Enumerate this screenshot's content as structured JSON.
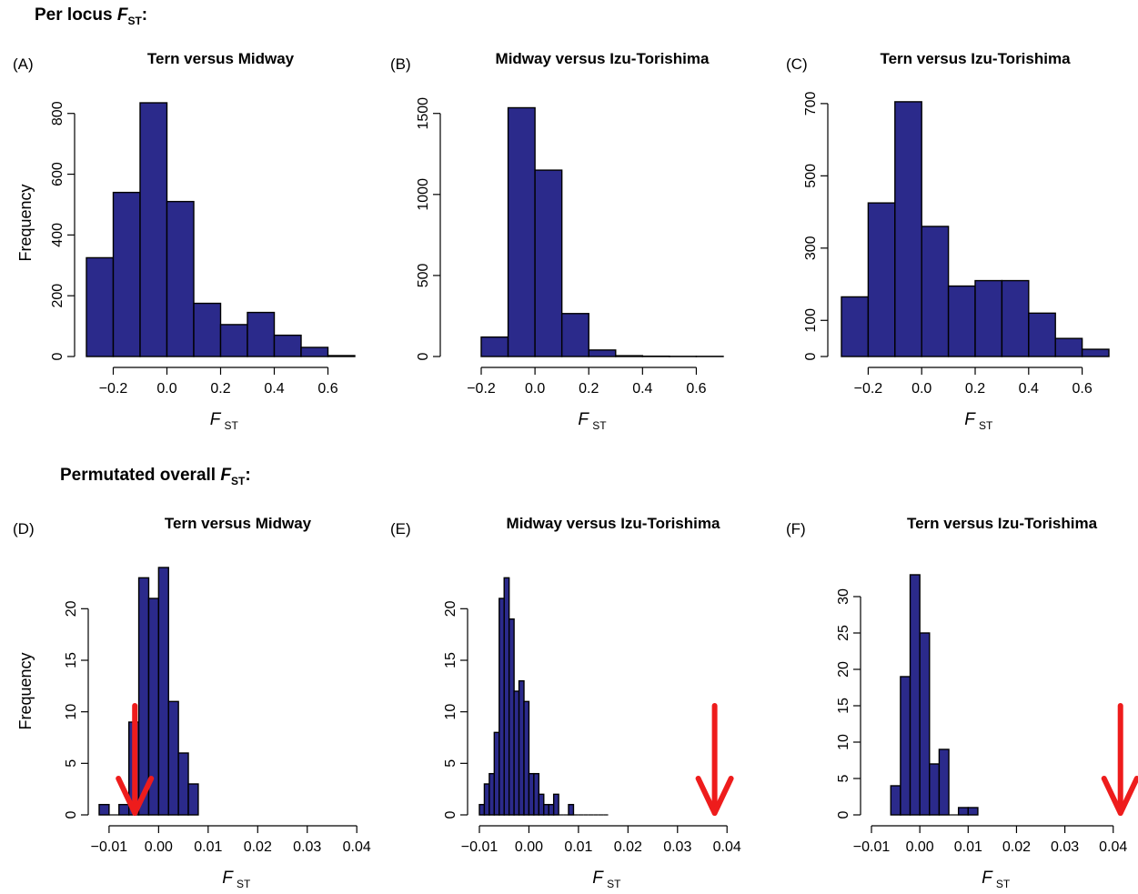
{
  "figure": {
    "section_top": {
      "label": "Per locus",
      "symbol": "F",
      "sub": "ST",
      "suffix": ":"
    },
    "section_bottom": {
      "label": "Permutated overall",
      "symbol": "F",
      "sub": "ST",
      "suffix": ":"
    },
    "bar_color": "#2b2a8b",
    "arrow_color": "#ee1c1c"
  },
  "chart_data": [
    {
      "type": "bar",
      "panel": "(A)",
      "title": "Tern versus Midway",
      "xlabel": "F",
      "xlabel_sub": "ST",
      "ylabel": "Frequency",
      "xlim": [
        -0.3,
        0.7
      ],
      "ylim": [
        0,
        880
      ],
      "bin_edges": [
        -0.3,
        -0.2,
        -0.1,
        0.0,
        0.1,
        0.2,
        0.3,
        0.4,
        0.5,
        0.6,
        0.7
      ],
      "values": [
        325,
        540,
        835,
        510,
        175,
        105,
        145,
        70,
        30,
        3
      ],
      "x_ticks": [
        -0.2,
        0.0,
        0.2,
        0.4,
        0.6
      ],
      "x_tick_labels": [
        "−0.2",
        "0.0",
        "0.2",
        "0.4",
        "0.6"
      ],
      "y_ticks": [
        0,
        200,
        400,
        600,
        800
      ],
      "y_tick_labels": [
        "0",
        "200",
        "400",
        "600",
        "800"
      ],
      "arrow_x": null
    },
    {
      "type": "bar",
      "panel": "(B)",
      "title": "Midway versus Izu-Torishima",
      "xlabel": "F",
      "xlabel_sub": "ST",
      "ylabel": "",
      "xlim": [
        -0.2,
        0.7
      ],
      "ylim": [
        0,
        1650
      ],
      "bin_edges": [
        -0.2,
        -0.1,
        0.0,
        0.1,
        0.2,
        0.3,
        0.4,
        0.5,
        0.6,
        0.7
      ],
      "values": [
        120,
        1535,
        1150,
        265,
        40,
        5,
        2,
        1,
        1
      ],
      "x_ticks": [
        -0.2,
        0.0,
        0.2,
        0.4,
        0.6
      ],
      "x_tick_labels": [
        "−0.2",
        "0.0",
        "0.2",
        "0.4",
        "0.6"
      ],
      "y_ticks": [
        0,
        500,
        1000,
        1500
      ],
      "y_tick_labels": [
        "0",
        "500",
        "1000",
        "1500"
      ],
      "arrow_x": null
    },
    {
      "type": "bar",
      "panel": "(C)",
      "title": "Tern versus Izu-Torishima",
      "xlabel": "F",
      "xlabel_sub": "ST",
      "ylabel": "",
      "xlim": [
        -0.3,
        0.7
      ],
      "ylim": [
        0,
        740
      ],
      "bin_edges": [
        -0.3,
        -0.2,
        -0.1,
        0.0,
        0.1,
        0.2,
        0.3,
        0.4,
        0.5,
        0.6,
        0.7
      ],
      "values": [
        165,
        425,
        705,
        360,
        195,
        210,
        210,
        120,
        50,
        20
      ],
      "x_ticks": [
        -0.2,
        0.0,
        0.2,
        0.4,
        0.6
      ],
      "x_tick_labels": [
        "−0.2",
        "0.0",
        "0.2",
        "0.4",
        "0.6"
      ],
      "y_ticks": [
        0,
        100,
        300,
        500,
        700
      ],
      "y_tick_labels": [
        "0",
        "100",
        "300",
        "500",
        "700"
      ],
      "arrow_x": null
    },
    {
      "type": "bar",
      "panel": "(D)",
      "title": "Tern versus Midway",
      "xlabel": "F",
      "xlabel_sub": "ST",
      "ylabel": "Frequency",
      "xlim": [
        -0.012,
        0.044
      ],
      "ylim": [
        0,
        24
      ],
      "bin_edges": [
        -0.012,
        -0.01,
        -0.008,
        -0.006,
        -0.004,
        -0.002,
        0.0,
        0.002,
        0.004,
        0.006,
        0.008
      ],
      "values": [
        1,
        0,
        1,
        9,
        23,
        21,
        24,
        11,
        6,
        3
      ],
      "x_ticks": [
        -0.01,
        0.0,
        0.01,
        0.02,
        0.03,
        0.04
      ],
      "x_tick_labels": [
        "−0.01",
        "0.00",
        "0.01",
        "0.02",
        "0.03",
        "0.04"
      ],
      "y_ticks": [
        0,
        5,
        10,
        15,
        20
      ],
      "y_tick_labels": [
        "0",
        "5",
        "10",
        "15",
        "20"
      ],
      "arrow_x": -0.0048
    },
    {
      "type": "bar",
      "panel": "(E)",
      "title": "Midway versus Izu-Torishima",
      "xlabel": "F",
      "xlabel_sub": "ST",
      "ylabel": "",
      "xlim": [
        -0.01,
        0.044
      ],
      "ylim": [
        0,
        24
      ],
      "bin_edges": [
        -0.01,
        -0.009,
        -0.008,
        -0.007,
        -0.006,
        -0.005,
        -0.004,
        -0.003,
        -0.002,
        -0.001,
        0.0,
        0.001,
        0.002,
        0.003,
        0.004,
        0.005,
        0.006,
        0.007,
        0.008,
        0.009,
        0.01,
        0.011,
        0.012,
        0.013,
        0.014,
        0.015,
        0.016
      ],
      "values": [
        1,
        3,
        4,
        8,
        21,
        23,
        19,
        12,
        13,
        11,
        4,
        4,
        2,
        1,
        1,
        2,
        0,
        0,
        1,
        0,
        0,
        0,
        0,
        0,
        0,
        0
      ],
      "x_ticks": [
        -0.01,
        0.0,
        0.01,
        0.02,
        0.03,
        0.04
      ],
      "x_tick_labels": [
        "−0.01",
        "0.00",
        "0.01",
        "0.02",
        "0.03",
        "0.04"
      ],
      "y_ticks": [
        0,
        5,
        10,
        15,
        20
      ],
      "y_tick_labels": [
        "0",
        "5",
        "10",
        "15",
        "20"
      ],
      "arrow_x": 0.0375
    },
    {
      "type": "bar",
      "panel": "(F)",
      "title": "Tern versus Izu-Torishima",
      "xlabel": "F",
      "xlabel_sub": "ST",
      "ylabel": "",
      "xlim": [
        -0.01,
        0.044
      ],
      "ylim": [
        0,
        34
      ],
      "bin_edges": [
        -0.006,
        -0.004,
        -0.002,
        0.0,
        0.002,
        0.004,
        0.006,
        0.008,
        0.01,
        0.012
      ],
      "values": [
        4,
        19,
        33,
        25,
        7,
        9,
        0,
        1,
        1
      ],
      "x_ticks": [
        -0.01,
        0.0,
        0.01,
        0.02,
        0.03,
        0.04
      ],
      "x_tick_labels": [
        "−0.01",
        "0.00",
        "0.01",
        "0.02",
        "0.03",
        "0.04"
      ],
      "y_ticks": [
        0,
        5,
        10,
        15,
        20,
        25,
        30
      ],
      "y_tick_labels": [
        "0",
        "5",
        "10",
        "15",
        "20",
        "25",
        "30"
      ],
      "arrow_x": 0.0415
    }
  ]
}
